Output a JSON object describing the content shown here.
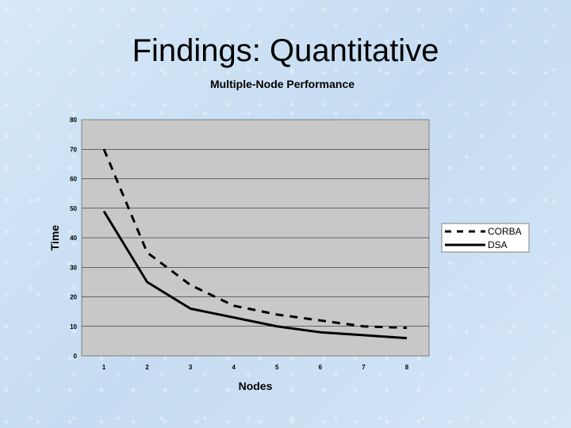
{
  "slide": {
    "title": "Findings: Quantitative"
  },
  "chart_data": {
    "type": "line",
    "title": "Multiple-Node Performance",
    "xlabel": "Nodes",
    "ylabel": "Time",
    "x": [
      1,
      2,
      3,
      4,
      5,
      6,
      7,
      8
    ],
    "xlim": [
      1,
      8
    ],
    "ylim": [
      0,
      80
    ],
    "yticks": [
      0,
      10,
      20,
      30,
      40,
      50,
      60,
      70,
      80
    ],
    "grid": true,
    "legend_position": "right",
    "series": [
      {
        "name": "CORBA",
        "values": [
          70,
          35,
          24,
          17,
          14,
          12,
          10,
          9.5
        ],
        "style": "dashed",
        "color": "#000000"
      },
      {
        "name": "DSA",
        "values": [
          49,
          25,
          16,
          13,
          10,
          8,
          7,
          6
        ],
        "style": "solid",
        "color": "#000000"
      }
    ],
    "colors": {
      "plot_background": "#c8c8c8",
      "gridline": "#000000"
    }
  }
}
